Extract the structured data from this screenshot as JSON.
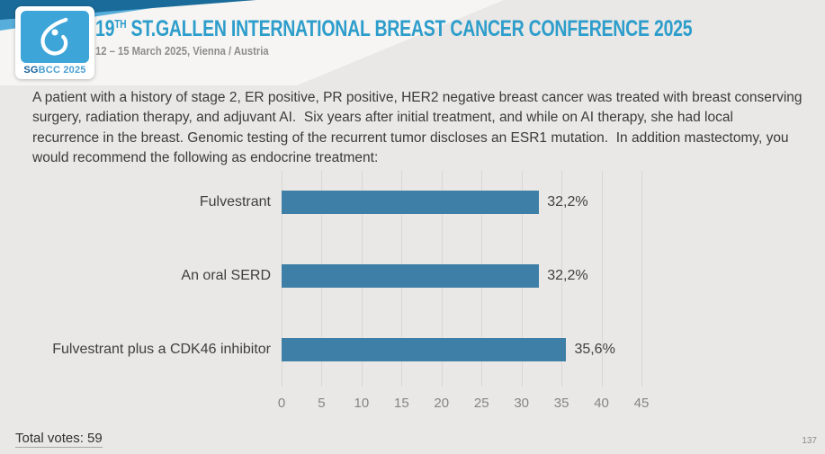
{
  "header": {
    "logo": {
      "sg": "SG",
      "rest": "BCC 2025"
    },
    "title_num": "19",
    "title_sup": "TH",
    "title_rest": " ST.GALLEN INTERNATIONAL BREAST CANCER CONFERENCE 2025",
    "subtitle": "12 – 15 March 2025, Vienna / Austria"
  },
  "question": "A patient with a history of stage 2, ER positive, PR positive, HER2 negative breast cancer was treated with breast conserving surgery, radiation therapy, and adjuvant AI.  Six years after initial treatment, and while on AI therapy, she had local recurrence in the breast. Genomic testing of the recurrent tumor discloses an ESR1 mutation.  In addition mastectomy, you would recommend the following as endocrine treatment:",
  "chart_data": {
    "type": "bar",
    "orientation": "horizontal",
    "title": "",
    "categories": [
      "Fulvestrant",
      "An oral SERD",
      "Fulvestrant plus a CDK46 inhibitor"
    ],
    "values": [
      32.2,
      32.2,
      35.6
    ],
    "value_labels": [
      "32,2%",
      "32,2%",
      "35,6%"
    ],
    "x_ticks": [
      "0",
      "5",
      "10",
      "15",
      "20",
      "25",
      "30",
      "35",
      "40",
      "45"
    ],
    "xlim": [
      0,
      45
    ],
    "grid": true,
    "legend": false,
    "bar_color": "#3d7fa6"
  },
  "footer": {
    "total_votes": "Total votes: 59",
    "page_number": "137"
  },
  "colors": {
    "accent_blue": "#2d9dcb",
    "logo_blue": "#3ea5d9",
    "band_dark": "#1a6b99",
    "band_light": "#58aedb",
    "background": "#e9e8e6"
  }
}
